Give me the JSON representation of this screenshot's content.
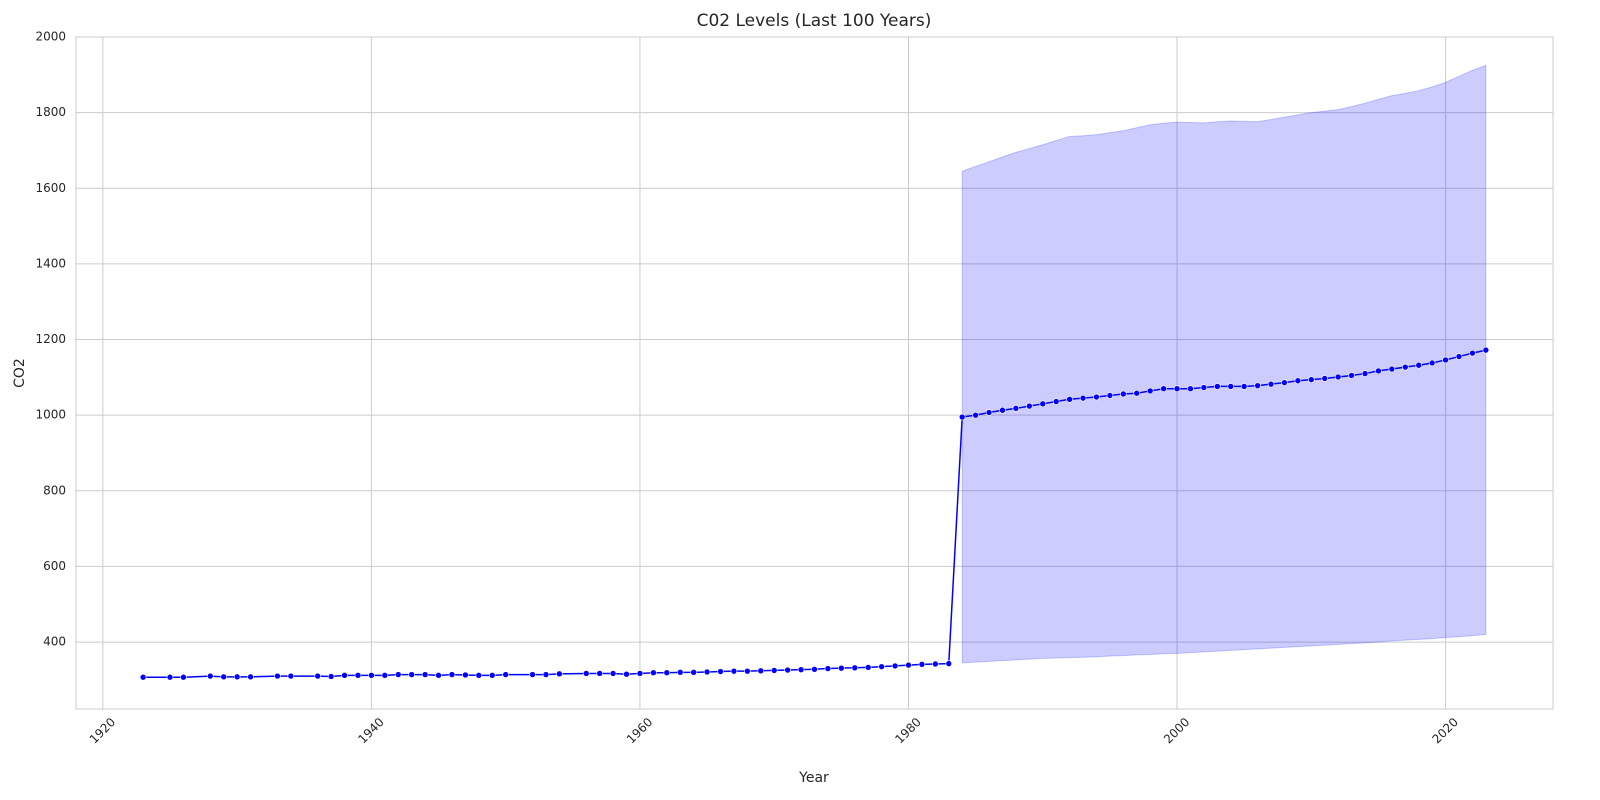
{
  "chart_data": {
    "type": "line",
    "title": "C02 Levels (Last 100 Years)",
    "x_label": "Year",
    "y_label": "CO2",
    "x": [
      1923,
      1925,
      1926,
      1928,
      1929,
      1930,
      1931,
      1933,
      1934,
      1936,
      1937,
      1938,
      1939,
      1940,
      1941,
      1942,
      1943,
      1944,
      1945,
      1946,
      1947,
      1948,
      1949,
      1950,
      1952,
      1953,
      1954,
      1956,
      1957,
      1958,
      1959,
      1960,
      1961,
      1962,
      1963,
      1964,
      1965,
      1966,
      1967,
      1968,
      1969,
      1970,
      1971,
      1972,
      1973,
      1974,
      1975,
      1976,
      1977,
      1978,
      1979,
      1980,
      1981,
      1982,
      1983,
      1984,
      1985,
      1986,
      1987,
      1988,
      1989,
      1990,
      1991,
      1992,
      1993,
      1994,
      1995,
      1996,
      1997,
      1998,
      1999,
      2000,
      2001,
      2002,
      2003,
      2004,
      2005,
      2006,
      2007,
      2008,
      2009,
      2010,
      2011,
      2012,
      2013,
      2014,
      2015,
      2016,
      2017,
      2018,
      2019,
      2020,
      2021,
      2022,
      2023
    ],
    "series": [
      {
        "color": "#0000ff",
        "values": [
          307,
          307,
          307,
          310,
          308,
          308,
          308,
          310,
          310,
          310,
          309,
          312,
          312,
          312,
          312,
          314,
          314,
          314,
          312,
          314,
          313,
          312,
          312,
          314,
          314,
          314,
          316,
          317,
          317,
          317,
          315,
          317,
          319,
          319,
          320,
          320,
          321,
          322,
          323,
          323,
          324,
          325,
          326,
          327,
          328,
          330,
          331,
          332,
          333,
          335,
          337,
          339,
          341,
          342,
          343,
          995,
          1000,
          1007,
          1013,
          1018,
          1024,
          1030,
          1036,
          1042,
          1045,
          1048,
          1052,
          1056,
          1058,
          1064,
          1070,
          1070,
          1070,
          1073,
          1076,
          1076,
          1076,
          1078,
          1082,
          1086,
          1091,
          1094,
          1097,
          1101,
          1105,
          1110,
          1117,
          1122,
          1127,
          1132,
          1138,
          1146,
          1155,
          1164,
          1172
        ],
        "upper": [
          null,
          null,
          null,
          null,
          null,
          null,
          null,
          null,
          null,
          null,
          null,
          null,
          null,
          null,
          null,
          null,
          null,
          null,
          null,
          null,
          null,
          null,
          null,
          null,
          null,
          null,
          null,
          null,
          null,
          null,
          null,
          null,
          null,
          null,
          null,
          null,
          null,
          null,
          null,
          null,
          null,
          null,
          null,
          null,
          null,
          null,
          null,
          null,
          null,
          null,
          null,
          null,
          null,
          null,
          null,
          1645,
          1658,
          1670,
          1683,
          1695,
          1705,
          1715,
          1726,
          1737,
          1739,
          1742,
          1747,
          1752,
          1760,
          1768,
          1772,
          1775,
          1774,
          1773,
          1776,
          1778,
          1777,
          1776,
          1782,
          1788,
          1794,
          1800,
          1804,
          1808,
          1816,
          1825,
          1835,
          1845,
          1851,
          1858,
          1868,
          1880,
          1896,
          1912,
          1925
        ],
        "lower": [
          null,
          null,
          null,
          null,
          null,
          null,
          null,
          null,
          null,
          null,
          null,
          null,
          null,
          null,
          null,
          null,
          null,
          null,
          null,
          null,
          null,
          null,
          null,
          null,
          null,
          null,
          null,
          null,
          null,
          null,
          null,
          null,
          null,
          null,
          null,
          null,
          null,
          null,
          null,
          null,
          null,
          null,
          null,
          null,
          null,
          null,
          null,
          null,
          null,
          null,
          null,
          null,
          null,
          null,
          null,
          345,
          347,
          349,
          351,
          353,
          355,
          357,
          358,
          359,
          360,
          361,
          363,
          364,
          366,
          367,
          369,
          370,
          372,
          374,
          376,
          378,
          380,
          382,
          384,
          386,
          388,
          390,
          392,
          394,
          396,
          398,
          400,
          403,
          405,
          407,
          409,
          412,
          414,
          417,
          420
        ]
      }
    ],
    "xlim": [
      1918,
      2028
    ],
    "xticks": [
      1920,
      1940,
      1960,
      1980,
      2000,
      2020
    ],
    "ylim": [
      223,
      2000
    ],
    "yticks": [
      400,
      600,
      800,
      1000,
      1200,
      1400,
      1600,
      1800,
      2000
    ],
    "grid": true
  }
}
